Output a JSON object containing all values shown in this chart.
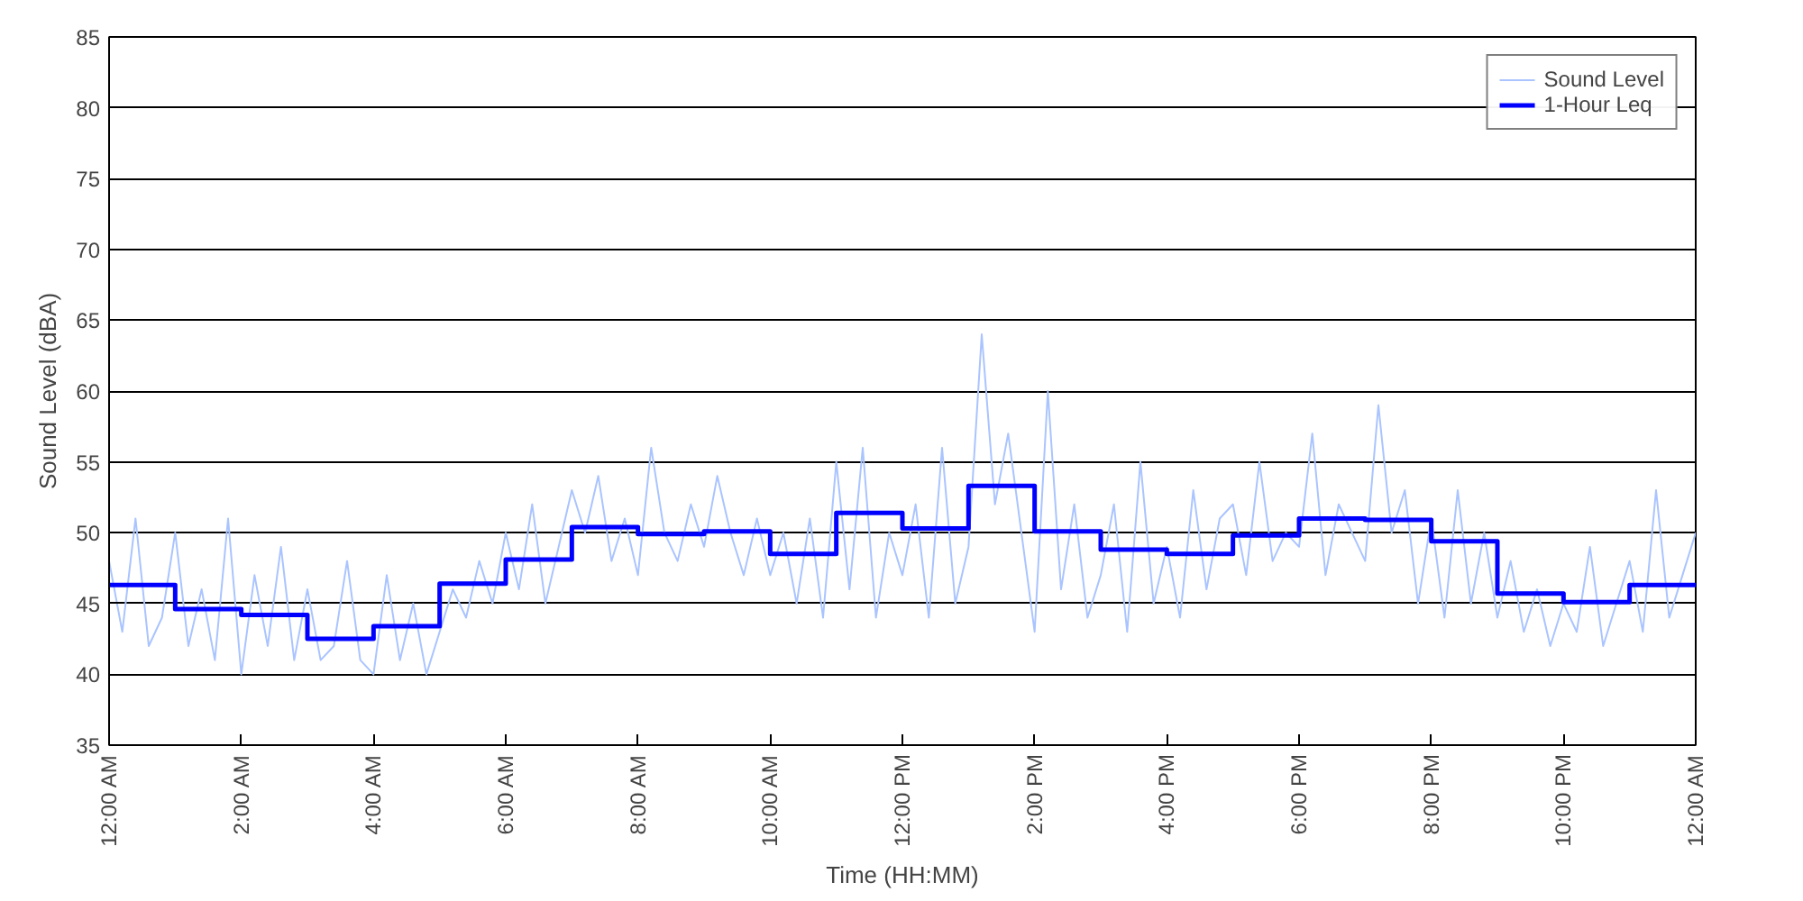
{
  "chart_data": {
    "type": "line",
    "xlabel": "Time (HH:MM)",
    "ylabel": "Sound Level (dBA)",
    "xlim": [
      0,
      24
    ],
    "ylim": [
      35,
      85
    ],
    "xticks": [
      {
        "value": 0,
        "label": "12:00 AM"
      },
      {
        "value": 2,
        "label": "2:00 AM"
      },
      {
        "value": 4,
        "label": "4:00 AM"
      },
      {
        "value": 6,
        "label": "6:00 AM"
      },
      {
        "value": 8,
        "label": "8:00 AM"
      },
      {
        "value": 10,
        "label": "10:00 AM"
      },
      {
        "value": 12,
        "label": "12:00 PM"
      },
      {
        "value": 14,
        "label": "2:00 PM"
      },
      {
        "value": 16,
        "label": "4:00 PM"
      },
      {
        "value": 18,
        "label": "6:00 PM"
      },
      {
        "value": 20,
        "label": "8:00 PM"
      },
      {
        "value": 22,
        "label": "10:00 PM"
      },
      {
        "value": 24,
        "label": "12:00 AM"
      }
    ],
    "yticks": [
      35,
      40,
      45,
      50,
      55,
      60,
      65,
      70,
      75,
      80,
      85
    ],
    "grid": "y",
    "legend": "top right",
    "series": [
      {
        "name": "Sound Level",
        "color": "#aac4ff",
        "x": [
          0,
          0.2,
          0.4,
          0.6,
          0.8,
          1,
          1.2,
          1.4,
          1.6,
          1.8,
          2,
          2.2,
          2.4,
          2.6,
          2.8,
          3,
          3.2,
          3.4,
          3.6,
          3.8,
          4,
          4.2,
          4.4,
          4.6,
          4.8,
          5,
          5.2,
          5.4,
          5.6,
          5.8,
          6,
          6.2,
          6.4,
          6.6,
          6.8,
          7,
          7.2,
          7.4,
          7.6,
          7.8,
          8,
          8.2,
          8.4,
          8.6,
          8.8,
          9,
          9.2,
          9.4,
          9.6,
          9.8,
          10,
          10.2,
          10.4,
          10.6,
          10.8,
          11,
          11.2,
          11.4,
          11.6,
          11.8,
          12,
          12.2,
          12.4,
          12.6,
          12.8,
          13,
          13.2,
          13.4,
          13.6,
          13.8,
          14,
          14.2,
          14.4,
          14.6,
          14.8,
          15,
          15.2,
          15.4,
          15.6,
          15.8,
          16,
          16.2,
          16.4,
          16.6,
          16.8,
          17,
          17.2,
          17.4,
          17.6,
          17.8,
          18,
          18.2,
          18.4,
          18.6,
          18.8,
          19,
          19.2,
          19.4,
          19.6,
          19.8,
          20,
          20.2,
          20.4,
          20.6,
          20.8,
          21,
          21.2,
          21.4,
          21.6,
          21.8,
          22,
          22.2,
          22.4,
          22.6,
          22.8,
          23,
          23.2,
          23.4,
          23.6,
          23.8,
          24
        ],
        "values": [
          48,
          43,
          51,
          42,
          44,
          50,
          42,
          46,
          41,
          51,
          40,
          47,
          42,
          49,
          41,
          46,
          41,
          42,
          48,
          41,
          40,
          47,
          41,
          45,
          40,
          43,
          46,
          44,
          48,
          45,
          50,
          46,
          52,
          45,
          49,
          53,
          50,
          54,
          48,
          51,
          47,
          56,
          50,
          48,
          52,
          49,
          54,
          50,
          47,
          51,
          47,
          50,
          45,
          51,
          44,
          55,
          46,
          56,
          44,
          50,
          47,
          52,
          44,
          56,
          45,
          49,
          64,
          52,
          57,
          50,
          43,
          60,
          46,
          52,
          44,
          47,
          52,
          43,
          55,
          45,
          49,
          44,
          53,
          46,
          51,
          52,
          47,
          55,
          48,
          50,
          49,
          57,
          47,
          52,
          50,
          48,
          59,
          50,
          53,
          45,
          51,
          44,
          53,
          45,
          50,
          44,
          48,
          43,
          46,
          42,
          45,
          43,
          49,
          42,
          45,
          48,
          43,
          53,
          44,
          47,
          50
        ]
      },
      {
        "name": "1-Hour Leq",
        "type": "step",
        "color": "#0000ff",
        "x": [
          0,
          1,
          2,
          3,
          4,
          5,
          6,
          7,
          8,
          9,
          10,
          11,
          12,
          13,
          14,
          15,
          16,
          17,
          18,
          19,
          20,
          21,
          22,
          23,
          24
        ],
        "values": [
          46.3,
          44.6,
          44.2,
          42.5,
          43.4,
          46.4,
          48.1,
          50.4,
          49.9,
          50.1,
          48.5,
          51.4,
          50.3,
          53.3,
          50.1,
          48.8,
          48.5,
          49.8,
          51.0,
          50.9,
          49.4,
          45.7,
          45.1,
          46.3,
          46.3
        ]
      }
    ]
  }
}
